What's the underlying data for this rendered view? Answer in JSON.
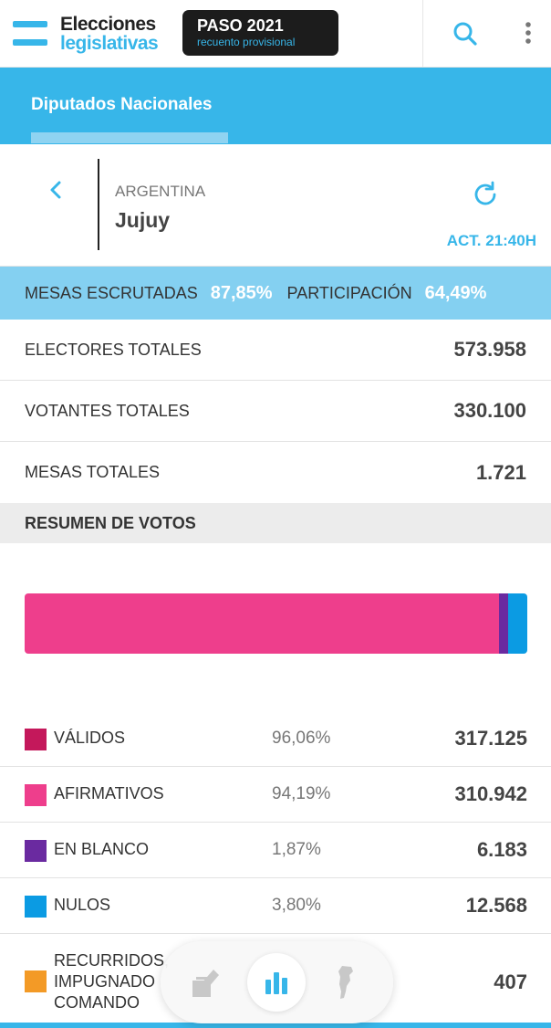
{
  "header": {
    "logo_line1": "Elecciones",
    "logo_line2": "legislativas",
    "badge_title": "PASO 2021",
    "badge_subtitle": "recuento provisional",
    "search_icon": "search-icon",
    "menu_icon": "more-vertical-icon"
  },
  "tabs": [
    {
      "label": "Diputados Nacionales",
      "active": true
    }
  ],
  "location": {
    "country": "ARGENTINA",
    "province": "Jujuy",
    "update": "ACT. 21:40H"
  },
  "summary": {
    "mesas_label": "MESAS ESCRUTADAS",
    "mesas_value": "87,85%",
    "participacion_label": "PARTICIPACIÓN",
    "participacion_value": "64,49%"
  },
  "stats": [
    {
      "label": "ELECTORES TOTALES",
      "value": "573.958"
    },
    {
      "label": "VOTANTES TOTALES",
      "value": "330.100"
    },
    {
      "label": "MESAS TOTALES",
      "value": "1.721"
    }
  ],
  "section_title": "RESUMEN DE VOTOS",
  "bar": [
    {
      "name": "afirmativos",
      "pct": 94.19,
      "color": "#ee3e8c"
    },
    {
      "name": "en-blanco",
      "pct": 1.87,
      "color": "#6a2aa0"
    },
    {
      "name": "nulos",
      "pct": 3.8,
      "color": "#0b9be3"
    }
  ],
  "votes": [
    {
      "label": "VÁLIDOS",
      "pct": "96,06%",
      "value": "317.125",
      "color": "#c4185b"
    },
    {
      "label": "AFIRMATIVOS",
      "pct": "94,19%",
      "value": "310.942",
      "color": "#ee3e8c"
    },
    {
      "label": "EN BLANCO",
      "pct": "1,87%",
      "value": "6.183",
      "color": "#6a2aa0"
    },
    {
      "label": "NULOS",
      "pct": "3,80%",
      "value": "12.568",
      "color": "#0b9be3"
    },
    {
      "label": "RECURRIDOS, IMPUGNADO COMANDO",
      "pct": "",
      "value": "407",
      "color": "#f39a26"
    }
  ],
  "bottom_nav": [
    {
      "icon": "ballot-box-icon"
    },
    {
      "icon": "bar-chart-icon",
      "active": true
    },
    {
      "icon": "argentina-map-icon"
    }
  ]
}
